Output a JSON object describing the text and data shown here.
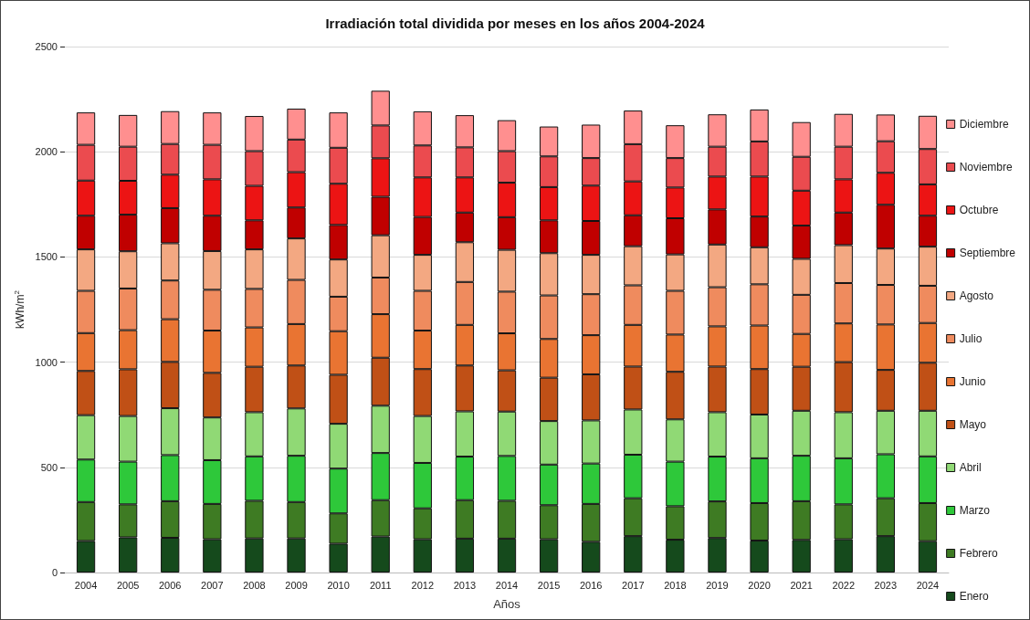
{
  "chart_data": {
    "type": "bar",
    "title": "Irradiación total dividida por meses en los años 2004-2024",
    "xlabel": "Años",
    "ylabel": "kWh/m$^{2}$",
    "categories": [
      "2004",
      "2005",
      "2006",
      "2007",
      "2008",
      "2009",
      "2010",
      "2011",
      "2012",
      "2013",
      "2014",
      "2015",
      "2016",
      "2017",
      "2018",
      "2019",
      "2020",
      "2021",
      "2022",
      "2023",
      "2024"
    ],
    "stacked": true,
    "ylim": [
      0,
      2500
    ],
    "yticks": [
      0,
      500,
      1000,
      1500,
      2000,
      2500
    ],
    "grid": "y",
    "legend": "right",
    "series": [
      {
        "name": "Enero",
        "color": "#154a1c",
        "values": [
          150,
          167,
          165,
          158,
          162,
          162,
          137,
          171,
          158,
          161,
          161,
          158,
          146,
          173,
          156,
          164,
          152,
          155,
          158,
          173,
          149
        ]
      },
      {
        "name": "Febrero",
        "color": "#3e7b23",
        "values": [
          185,
          157,
          174,
          168,
          179,
          173,
          144,
          173,
          147,
          183,
          180,
          162,
          180,
          180,
          159,
          174,
          178,
          184,
          166,
          180,
          181
        ]
      },
      {
        "name": "Marzo",
        "color": "#2ec83a",
        "values": [
          202,
          203,
          219,
          208,
          211,
          220,
          213,
          224,
          216,
          207,
          213,
          193,
          192,
          207,
          212,
          213,
          213,
          216,
          219,
          209,
          222
        ]
      },
      {
        "name": "Abril",
        "color": "#90d975",
        "values": [
          211,
          217,
          223,
          203,
          210,
          225,
          213,
          225,
          223,
          215,
          211,
          207,
          205,
          215,
          201,
          211,
          208,
          214,
          219,
          207,
          217
        ]
      },
      {
        "name": "Mayo",
        "color": "#c05016",
        "values": [
          210,
          222,
          220,
          212,
          216,
          204,
          233,
          228,
          223,
          218,
          196,
          206,
          219,
          204,
          226,
          217,
          216,
          209,
          238,
          194,
          228
        ]
      },
      {
        "name": "Junio",
        "color": "#e97432",
        "values": [
          180,
          186,
          203,
          201,
          187,
          197,
          207,
          207,
          183,
          193,
          176,
          184,
          186,
          198,
          177,
          191,
          207,
          156,
          184,
          216,
          189
        ]
      },
      {
        "name": "Julio",
        "color": "#ef8b5e",
        "values": [
          201,
          198,
          184,
          194,
          183,
          210,
          164,
          174,
          189,
          204,
          198,
          207,
          195,
          188,
          208,
          186,
          196,
          186,
          192,
          188,
          177
        ]
      },
      {
        "name": "Agosto",
        "color": "#f3a882",
        "values": [
          197,
          177,
          177,
          184,
          188,
          197,
          177,
          201,
          171,
          189,
          199,
          201,
          187,
          186,
          173,
          203,
          176,
          171,
          180,
          173,
          186
        ]
      },
      {
        "name": "Septiembre",
        "color": "#c00000",
        "values": [
          160,
          174,
          167,
          168,
          138,
          147,
          164,
          183,
          180,
          141,
          155,
          156,
          161,
          147,
          172,
          167,
          146,
          158,
          155,
          208,
          147
        ]
      },
      {
        "name": "Octubre",
        "color": "#ec1414",
        "values": [
          167,
          161,
          159,
          173,
          164,
          168,
          196,
          183,
          188,
          167,
          164,
          158,
          168,
          161,
          146,
          156,
          190,
          166,
          158,
          152,
          149
        ]
      },
      {
        "name": "Noviembre",
        "color": "#eb4b4f",
        "values": [
          170,
          162,
          146,
          164,
          165,
          155,
          171,
          156,
          152,
          143,
          150,
          146,
          131,
          177,
          140,
          142,
          167,
          161,
          155,
          150,
          168
        ]
      },
      {
        "name": "Diciembre",
        "color": "#ff8f8f",
        "values": [
          154,
          151,
          156,
          154,
          167,
          147,
          168,
          165,
          162,
          153,
          147,
          142,
          159,
          160,
          156,
          154,
          152,
          165,
          156,
          127,
          158
        ]
      }
    ]
  }
}
